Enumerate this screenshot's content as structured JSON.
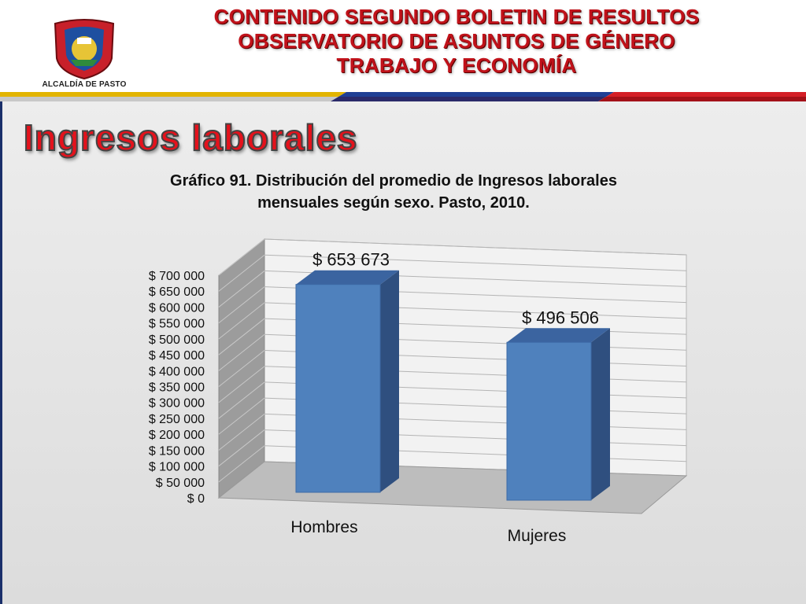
{
  "header": {
    "logo_text": "ALCALDÍA DE PASTO",
    "title_lines": [
      "CONTENIDO SEGUNDO BOLETIN DE RESULTOS",
      "OBSERVATORIO DE ASUNTOS DE GÉNERO",
      "TRABAJO Y ECONOMÍA"
    ]
  },
  "page": {
    "title": "Ingresos laborales"
  },
  "chart_data": {
    "type": "bar",
    "title": "Gráfico 91. Distribución del promedio de Ingresos laborales mensuales según sexo. Pasto, 2010.",
    "title_lines": [
      "Gráfico 91. Distribución del promedio de Ingresos laborales",
      "mensuales según sexo. Pasto, 2010."
    ],
    "categories": [
      "Hombres",
      "Mujeres"
    ],
    "values": [
      653673,
      496506
    ],
    "data_labels": [
      "$ 653 673",
      "$ 496 506"
    ],
    "ylim": [
      0,
      700000
    ],
    "y_ticks": [
      "$ 0",
      "$ 50 000",
      "$ 100 000",
      "$ 150 000",
      "$ 200 000",
      "$ 250 000",
      "$ 300 000",
      "$ 350 000",
      "$ 400 000",
      "$ 450 000",
      "$ 500 000",
      "$ 550 000",
      "$ 600 000",
      "$ 650 000",
      "$ 700 000"
    ],
    "xlabel": "",
    "ylabel": "",
    "grid": true,
    "colors": {
      "bar_front": "#4f81bd",
      "bar_side": "#2f4f7f",
      "bar_top": "#3b64a0",
      "back_wall": "#f2f2f2",
      "side_wall": "#9c9c9c",
      "floor": "#bdbdbd"
    }
  }
}
